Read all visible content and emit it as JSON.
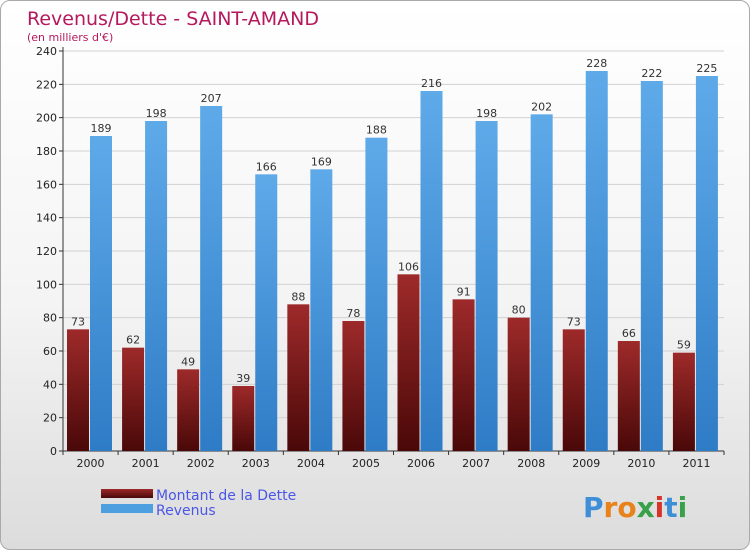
{
  "chart_data": {
    "type": "bar",
    "title": "Revenus/Dette - SAINT-AMAND",
    "subtitle": "(en milliers d'€)",
    "categories": [
      "2000",
      "2001",
      "2002",
      "2003",
      "2004",
      "2005",
      "2006",
      "2007",
      "2008",
      "2009",
      "2010",
      "2011"
    ],
    "series": [
      {
        "name": "Montant de la Dette",
        "color": "#8b1a1a",
        "values": [
          73,
          62,
          49,
          39,
          88,
          78,
          106,
          91,
          80,
          73,
          66,
          59
        ]
      },
      {
        "name": "Revenus",
        "color": "#4d9fe0",
        "values": [
          189,
          198,
          207,
          166,
          169,
          188,
          216,
          198,
          202,
          228,
          222,
          225
        ]
      }
    ],
    "yticks": [
      0,
      20,
      40,
      60,
      80,
      100,
      120,
      140,
      160,
      180,
      200,
      220,
      240
    ],
    "ylim": [
      0,
      240
    ],
    "grid": true,
    "legend_position": "bottom-left"
  },
  "logo": {
    "letters": [
      "P",
      "r",
      "o",
      "x",
      "i",
      "t",
      "i"
    ],
    "colors": [
      "#3e8fd8",
      "#e8821a",
      "#e8821a",
      "#3aa04a",
      "#d8332a",
      "#3e8fd8",
      "#3aa04a"
    ]
  }
}
